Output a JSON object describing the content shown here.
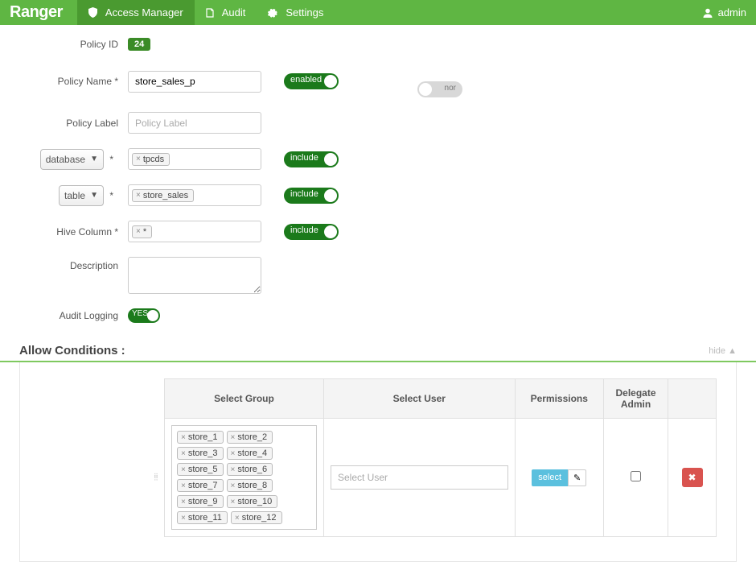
{
  "brand": "Ranger",
  "nav": {
    "access_manager": "Access Manager",
    "audit": "Audit",
    "settings": "Settings",
    "user": "admin"
  },
  "form": {
    "policy_id_label": "Policy ID",
    "policy_id": "24",
    "policy_name_label": "Policy Name *",
    "policy_name": "store_sales_p",
    "enabled_label": "enabled",
    "normal_label": "nor",
    "policy_label_label": "Policy Label",
    "policy_label_placeholder": "Policy Label",
    "database_select": "database",
    "database_token": "tpcds",
    "include_label": "include",
    "table_select": "table",
    "table_token": "store_sales",
    "hive_column_label": "Hive Column *",
    "hive_column_token": "*",
    "description_label": "Description",
    "audit_logging_label": "Audit Logging",
    "yes_label": "YES"
  },
  "conditions": {
    "title": "Allow Conditions :",
    "hide": "hide ▲",
    "headers": {
      "group": "Select Group",
      "user": "Select User",
      "permissions": "Permissions",
      "delegate": "Delegate Admin"
    },
    "groups": [
      "store_1",
      "store_2",
      "store_3",
      "store_4",
      "store_5",
      "store_6",
      "store_7",
      "store_8",
      "store_9",
      "store_10",
      "store_11",
      "store_12"
    ],
    "user_placeholder": "Select User",
    "select_btn": "select",
    "pencil": "✎",
    "delete": "✖"
  }
}
